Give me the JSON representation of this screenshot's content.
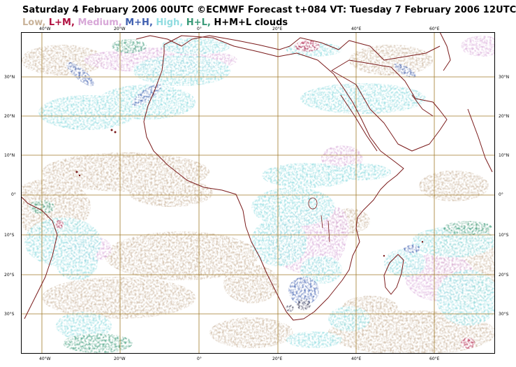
{
  "header": {
    "title": "Saturday 4 February 2006 00UTC ©ECMWF Forecast t+084 VT: Tuesday 7 February 2006 12UTC"
  },
  "legend": {
    "items": [
      {
        "label": "Low,",
        "color": "#c9b39a"
      },
      {
        "label": " L+M,",
        "color": "#b01040"
      },
      {
        "label": " Medium,",
        "color": "#d8a8d8"
      },
      {
        "label": " M+H,",
        "color": "#4060b0"
      },
      {
        "label": " High,",
        "color": "#90dce0"
      },
      {
        "label": " H+L,",
        "color": "#3a9a78"
      },
      {
        "label": " H+M+L clouds",
        "color": "#000000"
      }
    ]
  },
  "axes": {
    "top_ticks": [
      "40°W",
      "20°W",
      "0°",
      "20°E",
      "40°E",
      "60°E"
    ],
    "bottom_ticks": [
      "40°W",
      "20°W",
      "0°",
      "20°E",
      "40°E",
      "60°E"
    ],
    "left_ticks": [
      "30°N",
      "20°N",
      "10°N",
      "0°",
      "10°S",
      "20°S",
      "30°S"
    ],
    "right_ticks": [
      "30°N",
      "20°N",
      "10°N",
      "0°",
      "10°S",
      "20°S",
      "30°S"
    ]
  },
  "colors": {
    "coastline": "#7a1a1a",
    "grid": "#a07a2a",
    "border": "#000000"
  }
}
